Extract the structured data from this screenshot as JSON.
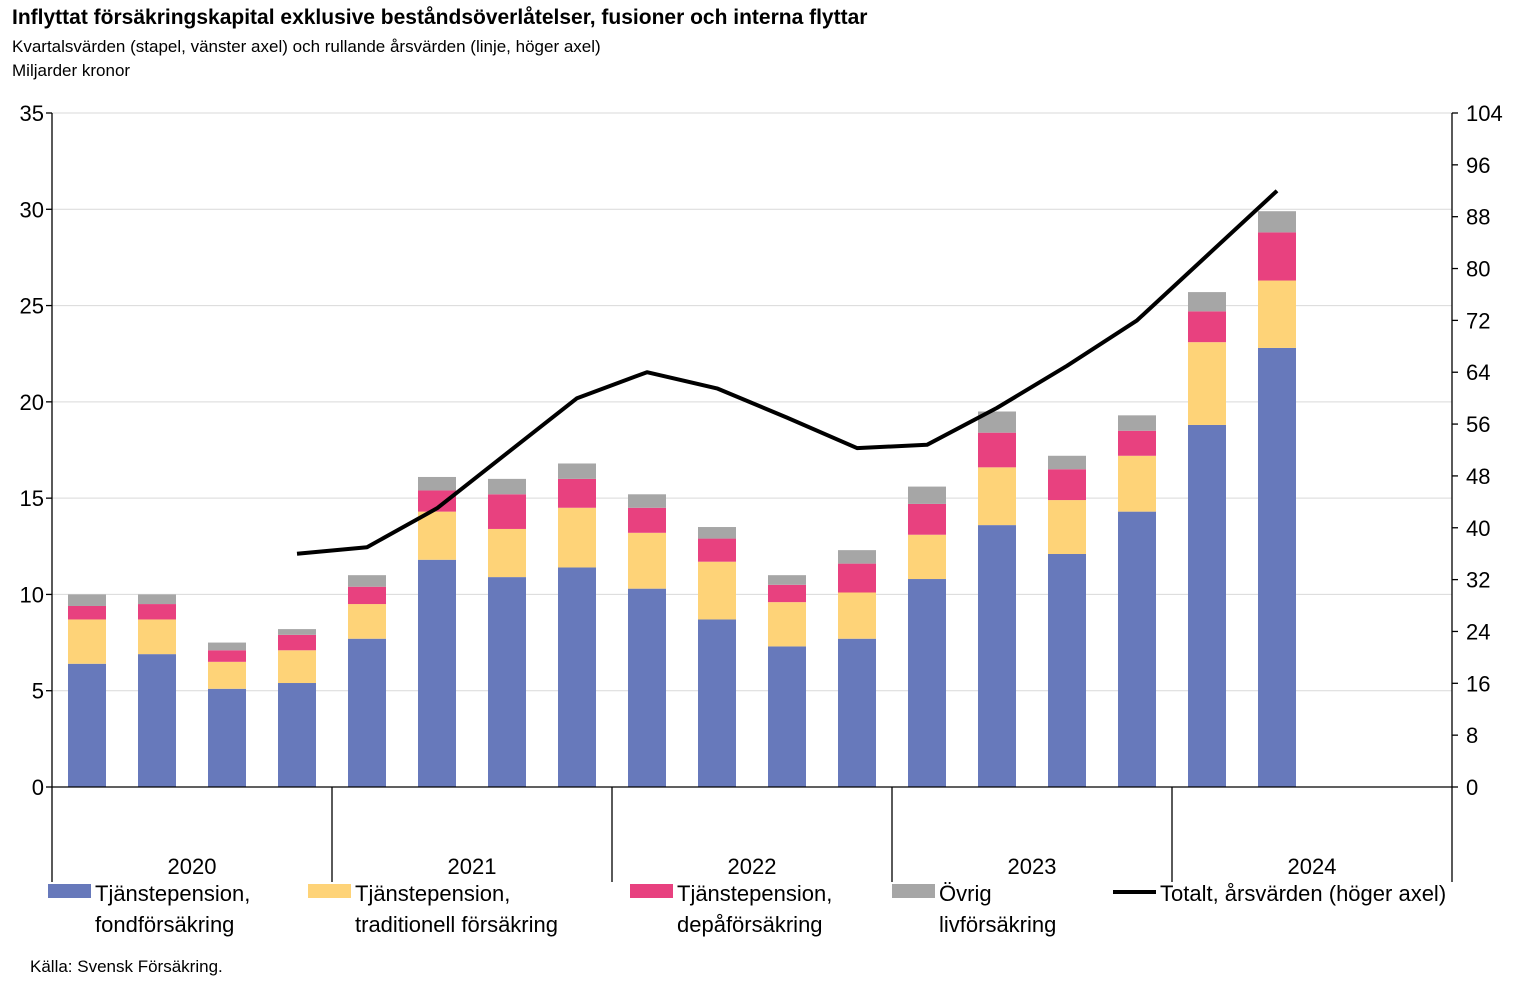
{
  "title": "Inflyttat försäkringskapital  exklusive beståndsöverlåtelser, fusioner och interna flyttar",
  "subtitle": "Kvartalsvärden (stapel, vänster axel) och rullande årsvärden (linje, höger axel)",
  "unit": "Miljarder kronor",
  "source": "Källa: Svensk Försäkring.",
  "colors": {
    "fond": "#6779bb",
    "traditionell": "#fed378",
    "depa": "#e8417f",
    "ovrig": "#a6a6a6",
    "total": "#000000"
  },
  "chart_data": {
    "type": "bar",
    "stacked": true,
    "years": [
      "2020",
      "2021",
      "2022",
      "2023",
      "2024"
    ],
    "categories": [
      "2020 Q1",
      "2020 Q2",
      "2020 Q3",
      "2020 Q4",
      "2021 Q1",
      "2021 Q2",
      "2021 Q3",
      "2021 Q4",
      "2022 Q1",
      "2022 Q2",
      "2022 Q3",
      "2022 Q4",
      "2023 Q1",
      "2023 Q2",
      "2023 Q3",
      "2023 Q4",
      "2024 Q1",
      "2024 Q2"
    ],
    "series": [
      {
        "name": "Tjänstepension, fondförsäkring",
        "label_lines": [
          "Tjänstepension,",
          "fondförsäkring"
        ],
        "color_key": "fond",
        "axis": "left",
        "values": [
          6.4,
          6.9,
          5.1,
          5.4,
          7.7,
          11.8,
          10.9,
          11.4,
          10.3,
          8.7,
          7.3,
          7.7,
          10.8,
          13.6,
          12.1,
          14.3,
          18.8,
          22.8
        ]
      },
      {
        "name": "Tjänstepension, traditionell försäkring",
        "label_lines": [
          "Tjänstepension,",
          "traditionell försäkring"
        ],
        "color_key": "traditionell",
        "axis": "left",
        "values": [
          2.3,
          1.8,
          1.4,
          1.7,
          1.8,
          2.5,
          2.5,
          3.1,
          2.9,
          3.0,
          2.3,
          2.4,
          2.3,
          3.0,
          2.8,
          2.9,
          4.3,
          3.5
        ]
      },
      {
        "name": "Tjänstepension, depåförsäkring",
        "label_lines": [
          "Tjänstepension,",
          "depåförsäkring"
        ],
        "color_key": "depa",
        "axis": "left",
        "values": [
          0.7,
          0.8,
          0.6,
          0.8,
          0.9,
          1.1,
          1.8,
          1.5,
          1.3,
          1.2,
          0.9,
          1.5,
          1.6,
          1.8,
          1.6,
          1.3,
          1.6,
          2.5
        ]
      },
      {
        "name": "Övrig livförsäkring",
        "label_lines": [
          "Övrig",
          "livförsäkring"
        ],
        "color_key": "ovrig",
        "axis": "left",
        "values": [
          0.6,
          0.5,
          0.4,
          0.3,
          0.6,
          0.7,
          0.8,
          0.8,
          0.7,
          0.6,
          0.5,
          0.7,
          0.9,
          1.1,
          0.7,
          0.8,
          1.0,
          1.1
        ]
      },
      {
        "name": "Totalt, årsvärden (höger axel)",
        "label_lines": [
          "Totalt, årsvärden (höger axel)"
        ],
        "color_key": "total",
        "axis": "right",
        "type": "line",
        "values": [
          null,
          null,
          null,
          36,
          37,
          43,
          51.5,
          60,
          64,
          61.5,
          57,
          52.3,
          52.8,
          58.5,
          65,
          72,
          82,
          92
        ]
      }
    ],
    "y_left": {
      "min": 0,
      "max": 35,
      "ticks": [
        "0",
        "5",
        "10",
        "15",
        "20",
        "25",
        "30",
        "35"
      ]
    },
    "y_right": {
      "min": 0,
      "max": 104,
      "ticks": [
        "0",
        "8",
        "16",
        "24",
        "32",
        "40",
        "48",
        "56",
        "64",
        "72",
        "80",
        "88",
        "96",
        "104"
      ]
    },
    "slots_per_year": 4,
    "grid": "horizontal",
    "legend_position": "bottom"
  }
}
